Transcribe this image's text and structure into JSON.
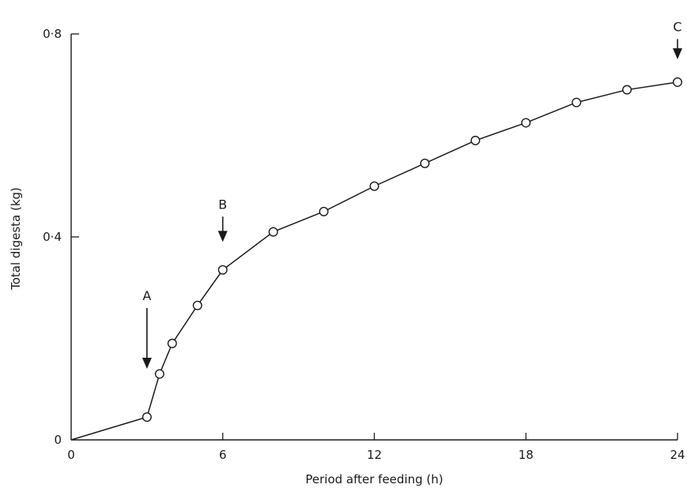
{
  "chart_data": {
    "type": "line",
    "title": "",
    "xlabel": "Period after feeding (h)",
    "ylabel": "Total digesta (kg)",
    "xlim": [
      0,
      24
    ],
    "ylim": [
      0,
      0.8
    ],
    "x_ticks": [
      0,
      6,
      12,
      18,
      24
    ],
    "x_tick_labels": [
      "0",
      "6",
      "12",
      "18",
      "24"
    ],
    "y_ticks": [
      0,
      0.4,
      0.8
    ],
    "y_tick_labels": [
      "0",
      "0·4",
      "0·8"
    ],
    "grid": false,
    "legend": "none",
    "series": [
      {
        "x": [
          0,
          3,
          3.5,
          4,
          5,
          6,
          8,
          10,
          12,
          14,
          16,
          18,
          20,
          22,
          24
        ],
        "y": [
          0.0,
          0.045,
          0.13,
          0.19,
          0.265,
          0.335,
          0.41,
          0.45,
          0.5,
          0.545,
          0.59,
          0.625,
          0.665,
          0.69,
          0.705
        ],
        "markers": [
          false,
          true,
          true,
          true,
          true,
          true,
          true,
          true,
          true,
          true,
          true,
          true,
          true,
          true,
          true
        ]
      }
    ],
    "annotations": [
      {
        "label": "A",
        "x": 3,
        "y_from": 0.26,
        "y_to": 0.14
      },
      {
        "label": "B",
        "x": 6,
        "y_from": 0.44,
        "y_to": 0.39
      },
      {
        "label": "C",
        "x": 24,
        "y_from": 0.79,
        "y_to": 0.75
      }
    ]
  }
}
